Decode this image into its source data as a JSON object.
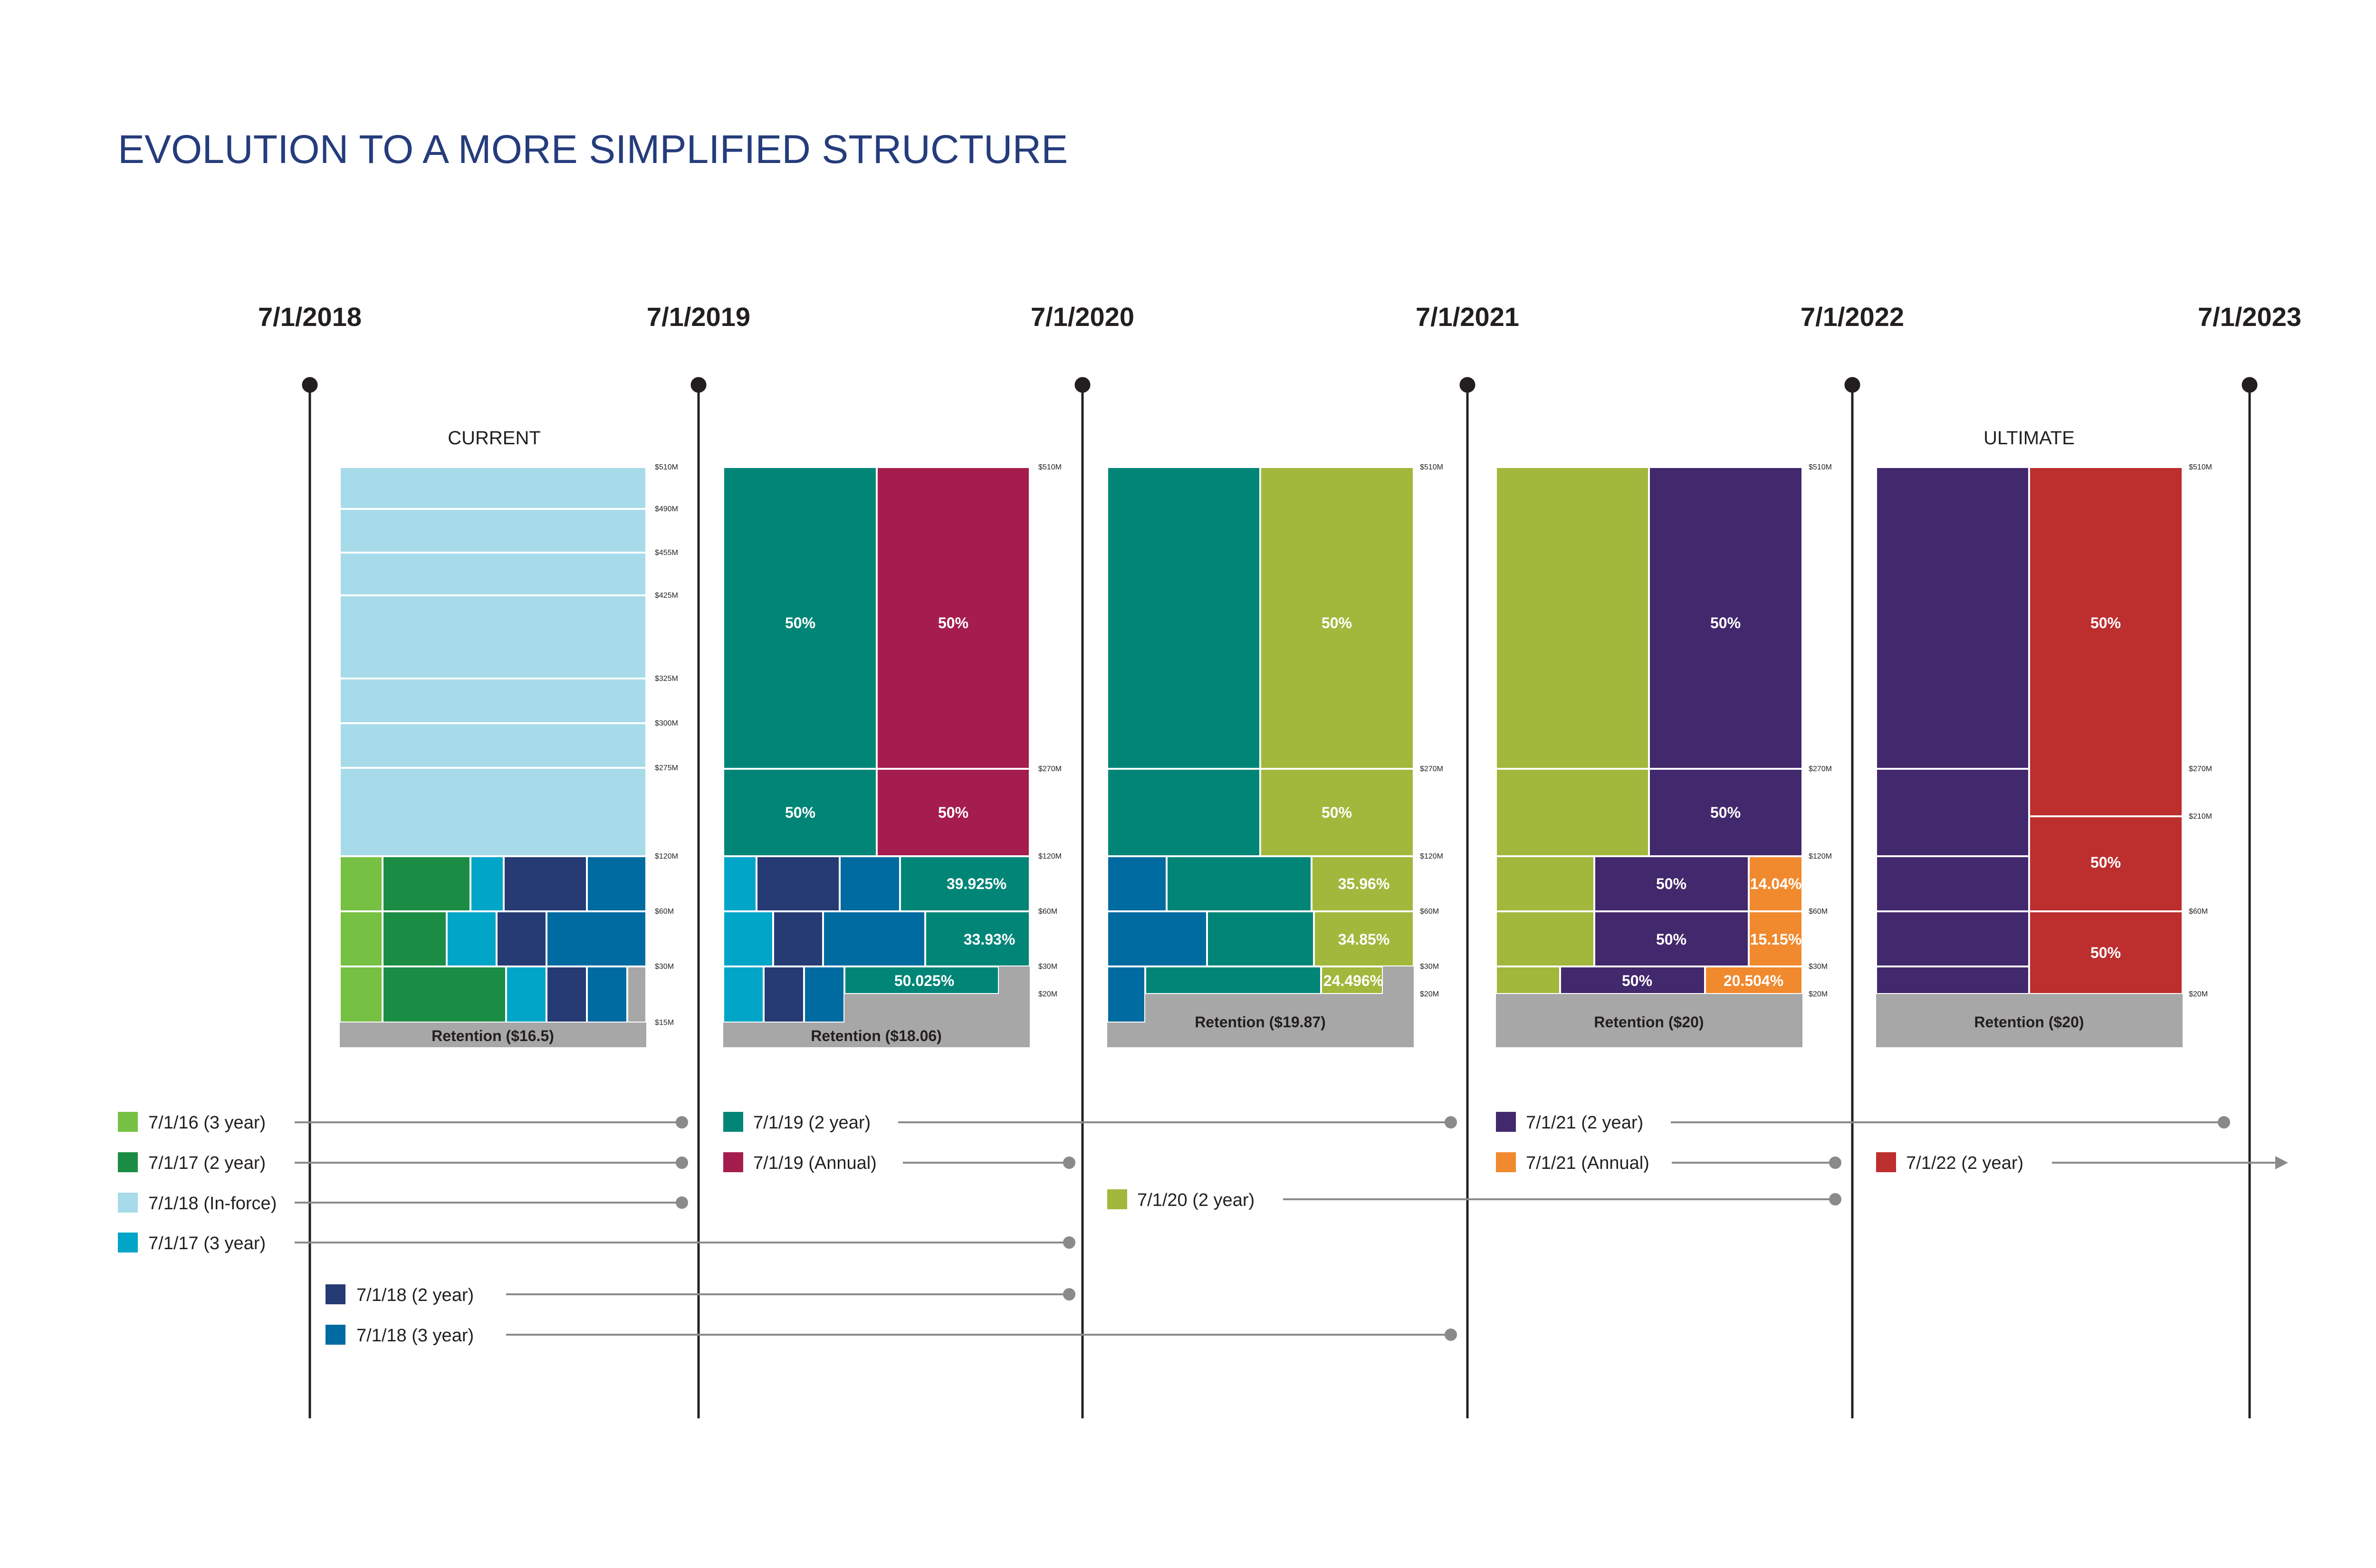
{
  "title": "EVOLUTION TO A MORE SIMPLIFIED STRUCTURE",
  "dates": [
    "7/1/2018",
    "7/1/2019",
    "7/1/2020",
    "7/1/2021",
    "7/1/2022",
    "7/1/2023"
  ],
  "panels": [
    {
      "header": "CURRENT",
      "ticks": [
        "$510M",
        "$490M",
        "$455M",
        "$425M",
        "$325M",
        "$300M",
        "$275M",
        "$120M",
        "$60M",
        "$30M",
        "$15M"
      ],
      "retention": "Retention ($16.5)"
    },
    {
      "header": "",
      "ticks": [
        "$510M",
        "$270M",
        "$120M",
        "$60M",
        "$30M",
        "$20M"
      ],
      "labels": [
        "50%",
        "50%",
        "50%",
        "50%",
        "39.925%",
        "33.93%",
        "50.025%"
      ],
      "retention": "Retention ($18.06)"
    },
    {
      "header": "",
      "ticks": [
        "$510M",
        "$270M",
        "$120M",
        "$60M",
        "$30M",
        "$20M"
      ],
      "labels": [
        "50%",
        "50%",
        "35.96%",
        "34.85%",
        "24.496%"
      ],
      "retention": "Retention ($19.87)"
    },
    {
      "header": "",
      "ticks": [
        "$510M",
        "$270M",
        "$120M",
        "$60M",
        "$30M",
        "$20M"
      ],
      "labels": [
        "50%",
        "50%",
        "50%",
        "14.04%",
        "50%",
        "15.15%",
        "50%",
        "20.504%"
      ],
      "retention": "Retention ($20)"
    },
    {
      "header": "ULTIMATE",
      "ticks": [
        "$510M",
        "$270M",
        "$210M",
        "$60M",
        "$20M"
      ],
      "labels": [
        "50%",
        "50%",
        "50%"
      ],
      "retention": "Retention ($20)"
    }
  ],
  "legend": [
    {
      "label": "7/1/16 (3 year)",
      "color": "#76c043"
    },
    {
      "label": "7/1/17 (2 year)",
      "color": "#1b8c44"
    },
    {
      "label": "7/1/18 (In-force)",
      "color": "#a7dbe9"
    },
    {
      "label": "7/1/17 (3 year)",
      "color": "#00a5c8"
    },
    {
      "label": "7/1/18 (2 year)",
      "color": "#263a73"
    },
    {
      "label": "7/1/18 (3 year)",
      "color": "#006ba0"
    },
    {
      "label": "7/1/19 (2 year)",
      "color": "#008577"
    },
    {
      "label": "7/1/19 (Annual)",
      "color": "#a51d4d"
    },
    {
      "label": "7/1/20 (2 year)",
      "color": "#a1b83c"
    },
    {
      "label": "7/1/21 (2 year)",
      "color": "#42286c"
    },
    {
      "label": "7/1/21 (Annual)",
      "color": "#f1892e"
    },
    {
      "label": "7/1/22 (2 year)",
      "color": "#bd2e2e"
    }
  ],
  "colors": {
    "title": "#253c7c",
    "retention": "#a8a7a8",
    "timeline": "#231f20",
    "connector": "#8a8a8a"
  }
}
